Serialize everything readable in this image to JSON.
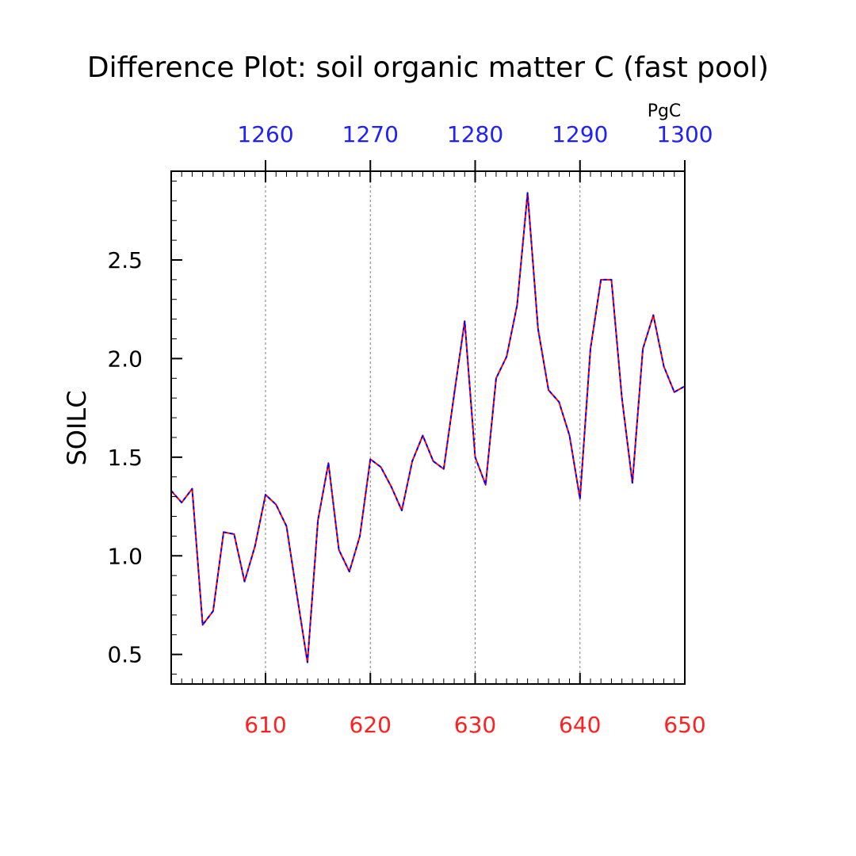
{
  "chart_data": {
    "type": "line",
    "title": "Difference Plot: soil organic matter C (fast pool)",
    "ylabel": "SOILC",
    "top_axis_unit": "PgC",
    "xlim": [
      601,
      650
    ],
    "ylim": [
      0.35,
      2.95
    ],
    "x_ticks": [
      610,
      620,
      630,
      640,
      650
    ],
    "x_tick_labels": [
      "610",
      "620",
      "630",
      "640",
      "650"
    ],
    "top_ticks": [
      610,
      620,
      630,
      640,
      650
    ],
    "top_tick_labels": [
      "1260",
      "1270",
      "1280",
      "1290",
      "1300"
    ],
    "y_ticks": [
      0.5,
      1.0,
      1.5,
      2.0,
      2.5
    ],
    "y_tick_labels": [
      "0.5",
      "1.0",
      "1.5",
      "2.0",
      "2.5"
    ],
    "colors": {
      "bottom_axis": "#ff2020",
      "top_axis": "#2020ff",
      "line_a": "#ff0000",
      "line_b": "#0000ff",
      "grid": "#808080"
    },
    "grid": "vertical-dashed",
    "x": [
      601,
      602,
      603,
      604,
      605,
      606,
      607,
      608,
      609,
      610,
      611,
      612,
      613,
      614,
      615,
      616,
      617,
      618,
      619,
      620,
      621,
      622,
      623,
      624,
      625,
      626,
      627,
      628,
      629,
      630,
      631,
      632,
      633,
      634,
      635,
      636,
      637,
      638,
      639,
      640,
      641,
      642,
      643,
      644,
      645,
      646,
      647,
      648,
      649,
      650
    ],
    "series": [
      {
        "values": [
          1.33,
          1.27,
          1.34,
          0.65,
          0.72,
          1.12,
          1.11,
          0.87,
          1.05,
          1.31,
          1.26,
          1.15,
          0.8,
          0.46,
          1.18,
          1.47,
          1.03,
          0.92,
          1.1,
          1.49,
          1.45,
          1.35,
          1.23,
          1.48,
          1.61,
          1.48,
          1.44,
          1.82,
          2.19,
          1.5,
          1.36,
          1.9,
          2.01,
          2.27,
          2.84,
          2.15,
          1.84,
          1.78,
          1.61,
          1.29,
          2.05,
          2.4,
          2.4,
          1.8,
          1.37,
          2.05,
          2.22,
          1.96,
          1.83,
          1.86
        ]
      }
    ]
  }
}
